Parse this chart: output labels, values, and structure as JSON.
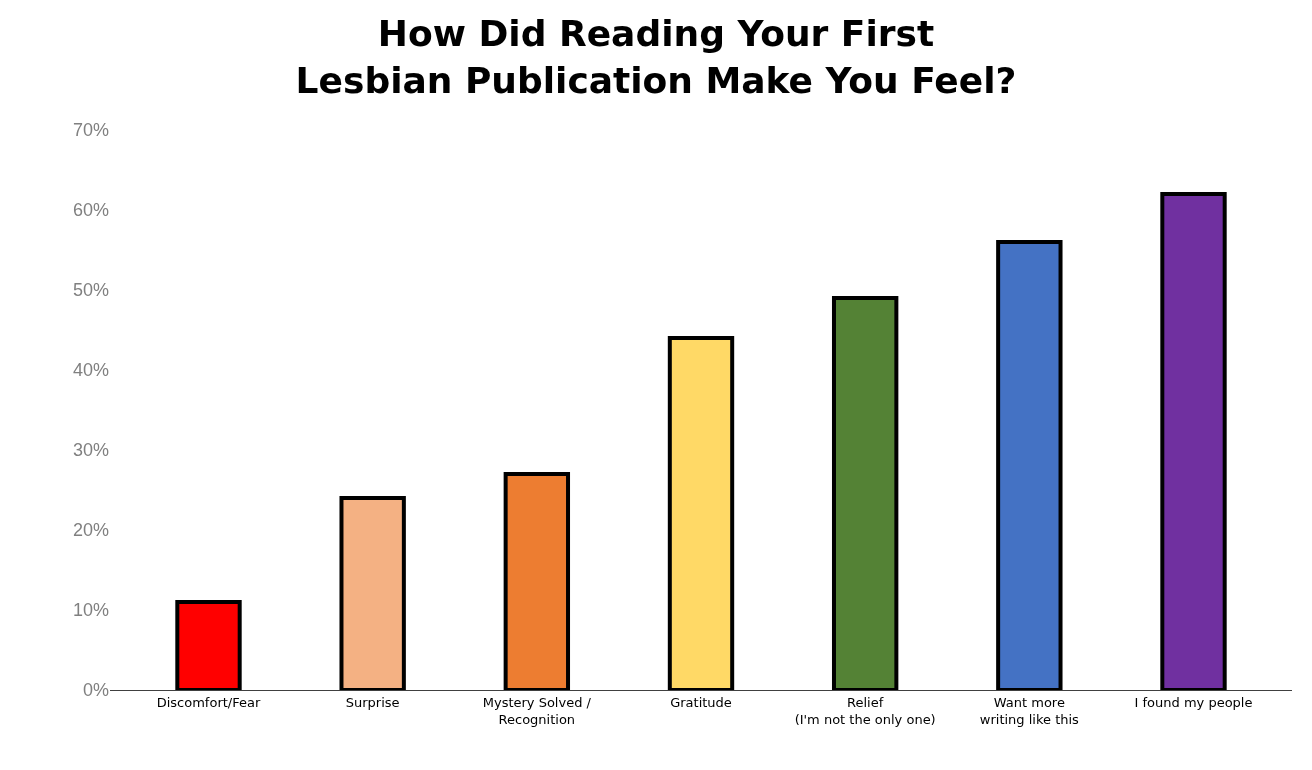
{
  "chart_data": {
    "type": "bar",
    "title": "How Did Reading Your First\nLesbian Publication Make You Feel?",
    "categories": [
      "Discomfort/Fear",
      "Surprise",
      "Mystery Solved /\nRecognition",
      "Gratitude",
      "Relief\n(I'm not the only one)",
      "Want more\nwriting like this",
      "I found my people"
    ],
    "values": [
      11,
      24,
      27,
      44,
      49,
      56,
      62
    ],
    "colors": [
      "#ff0000",
      "#f4b183",
      "#ed7d31",
      "#ffd966",
      "#548235",
      "#4472c4",
      "#7030a0"
    ],
    "ylim": [
      0,
      70
    ],
    "yticks": [
      {
        "value": 0,
        "label": "0%"
      },
      {
        "value": 10,
        "label": "10%"
      },
      {
        "value": 20,
        "label": "20%"
      },
      {
        "value": 30,
        "label": "30%"
      },
      {
        "value": 40,
        "label": "40%"
      },
      {
        "value": 50,
        "label": "50%"
      },
      {
        "value": 60,
        "label": "60%"
      },
      {
        "value": 70,
        "label": "70%"
      }
    ],
    "grid": false
  }
}
